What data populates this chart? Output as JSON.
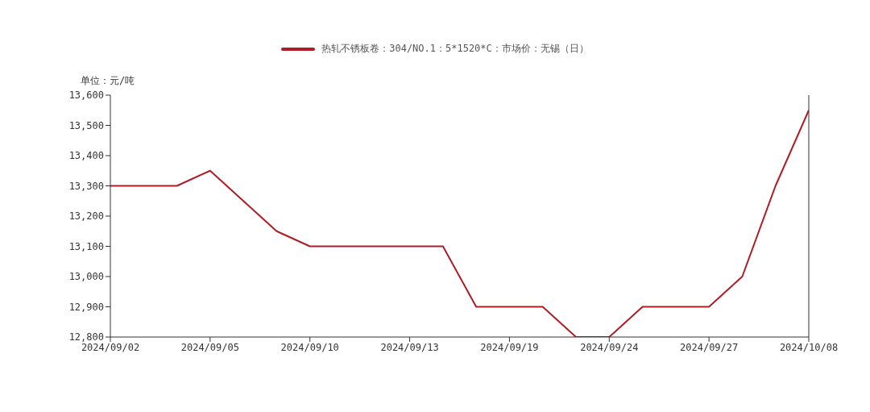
{
  "chart_data": {
    "type": "line",
    "ylabel": "单位：元/吨",
    "categories": [
      "2024/09/02",
      null,
      null,
      "2024/09/05",
      null,
      null,
      "2024/09/10",
      null,
      null,
      "2024/09/13",
      null,
      null,
      "2024/09/19",
      null,
      null,
      "2024/09/24",
      null,
      null,
      "2024/09/27",
      null,
      null,
      "2024/10/08"
    ],
    "series": [
      {
        "name": "热轧不锈板卷：304/NO.1：5*1520*C：市场价：无锡（日）",
        "color": "#b01c24",
        "values": [
          13300,
          13300,
          13300,
          13350,
          13250,
          13150,
          13100,
          13100,
          13100,
          13100,
          13100,
          12900,
          12900,
          12900,
          12800,
          12800,
          12900,
          12900,
          12900,
          13000,
          13300,
          13550
        ]
      }
    ],
    "ylim": [
      12800,
      13600
    ],
    "yticks": [
      {
        "value": 12800,
        "label": "12,800"
      },
      {
        "value": 12900,
        "label": "12,900"
      },
      {
        "value": 13000,
        "label": "13,000"
      },
      {
        "value": 13100,
        "label": "13,100"
      },
      {
        "value": 13200,
        "label": "13,200"
      },
      {
        "value": 13300,
        "label": "13,300"
      },
      {
        "value": 13400,
        "label": "13,400"
      },
      {
        "value": 13500,
        "label": "13,500"
      },
      {
        "value": 13600,
        "label": "13,600"
      }
    ],
    "grid": false,
    "legend": "top",
    "marker": "none",
    "line_style": "solid"
  }
}
